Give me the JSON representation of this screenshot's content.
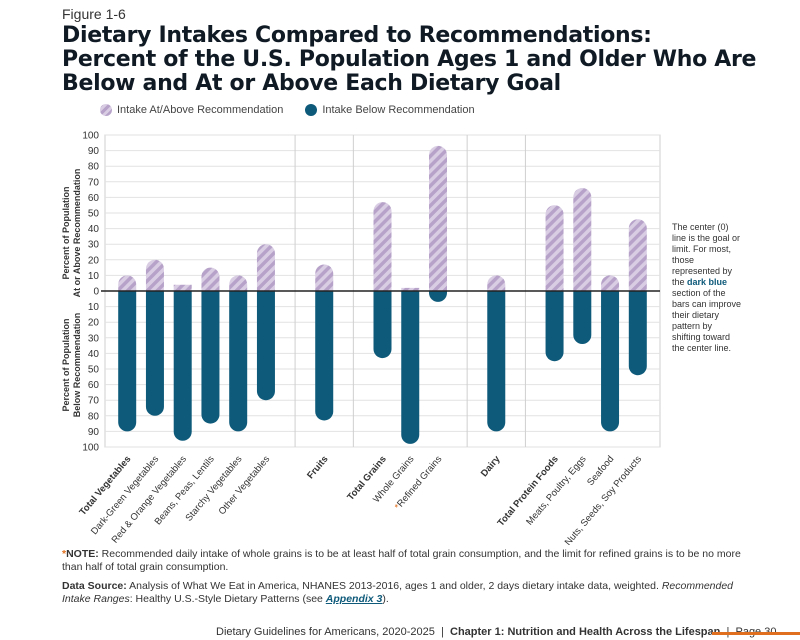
{
  "figure_label": "Figure 1-6",
  "title_lines": [
    "Dietary Intakes Compared to Recommendations:",
    "Percent of the U.S. Population Ages 1 and Older Who Are",
    "Below and At or Above Each Dietary Goal"
  ],
  "legend": {
    "above": "Intake At/Above Recommendation",
    "below": "Intake Below Recommendation"
  },
  "colors": {
    "above": "#b7a3c9",
    "above_light": "#d9cde4",
    "below": "#0e5a7a",
    "accent": "#e0701f"
  },
  "side_note": {
    "pre": "The center (0) line is the goal or limit. For most, those represented by the ",
    "bold": "dark blue",
    "post": " section of the bars can improve their dietary pattern by shifting toward the center line."
  },
  "note": {
    "star": "*",
    "label": "NOTE:",
    "text": " Recommended daily intake of whole grains is to be at least half of total grain consumption, and the limit for refined grains is to be no more than half of total grain consumption."
  },
  "source": {
    "label": "Data Source:",
    "text": " Analysis of What We Eat in America, NHANES 2013-2016, ages 1 and older, 2 days dietary intake data, weighted. ",
    "ranges_label": "Recommended Intake Ranges",
    "ranges_text": ": Healthy U.S.-Style Dietary Patterns (see ",
    "link": "Appendix 3",
    "close": ")."
  },
  "footer": {
    "left": "Dietary Guidelines for Americans, 2020-2025",
    "sep1": "|",
    "chapter": "Chapter 1: Nutrition and Health Across the Lifespan",
    "sep2": "|",
    "page": "Page 30"
  },
  "chart_data": {
    "type": "bar",
    "ylabel_above": [
      "Percent of Population",
      "At or Above Recommendation"
    ],
    "ylabel_below": [
      "Percent of Population",
      "Below Recommendation"
    ],
    "yticks": [
      100,
      90,
      80,
      70,
      60,
      50,
      40,
      30,
      20,
      10,
      0,
      10,
      20,
      30,
      40,
      50,
      60,
      70,
      80,
      90,
      100
    ],
    "ylim": [
      -100,
      100
    ],
    "grid": true,
    "legend_position": "top",
    "groups": [
      {
        "items": [
          {
            "label": "Total Vegetables",
            "bold": true,
            "above": 10,
            "below": 90
          },
          {
            "label": "Dark-Green Vegetables",
            "above": 20,
            "below": 80
          },
          {
            "label": "Red & Orange Vegetables",
            "above": 4,
            "below": 96
          },
          {
            "label": "Beans, Peas, Lentils",
            "above": 15,
            "below": 85
          },
          {
            "label": "Starchy Vegetables",
            "above": 10,
            "below": 90
          },
          {
            "label": "Other Vegetables",
            "above": 30,
            "below": 70
          }
        ]
      },
      {
        "items": [
          {
            "label": "Fruits",
            "bold": true,
            "above": 17,
            "below": 83
          }
        ]
      },
      {
        "items": [
          {
            "label": "Total Grains",
            "bold": true,
            "above": 57,
            "below": 43
          },
          {
            "label": "Whole Grains",
            "above": 2,
            "below": 98
          },
          {
            "label": "Refined Grains",
            "star": true,
            "above": 93,
            "below": 7
          }
        ]
      },
      {
        "items": [
          {
            "label": "Dairy",
            "bold": true,
            "above": 10,
            "below": 90
          }
        ]
      },
      {
        "items": [
          {
            "label": "Total Protein Foods",
            "bold": true,
            "above": 55,
            "below": 45
          },
          {
            "label": "Meats, Poultry, Eggs",
            "above": 66,
            "below": 34
          },
          {
            "label": "Seafood",
            "above": 10,
            "below": 90
          },
          {
            "label": "Nuts, Seeds, Soy Products",
            "above": 46,
            "below": 54
          }
        ]
      }
    ]
  }
}
